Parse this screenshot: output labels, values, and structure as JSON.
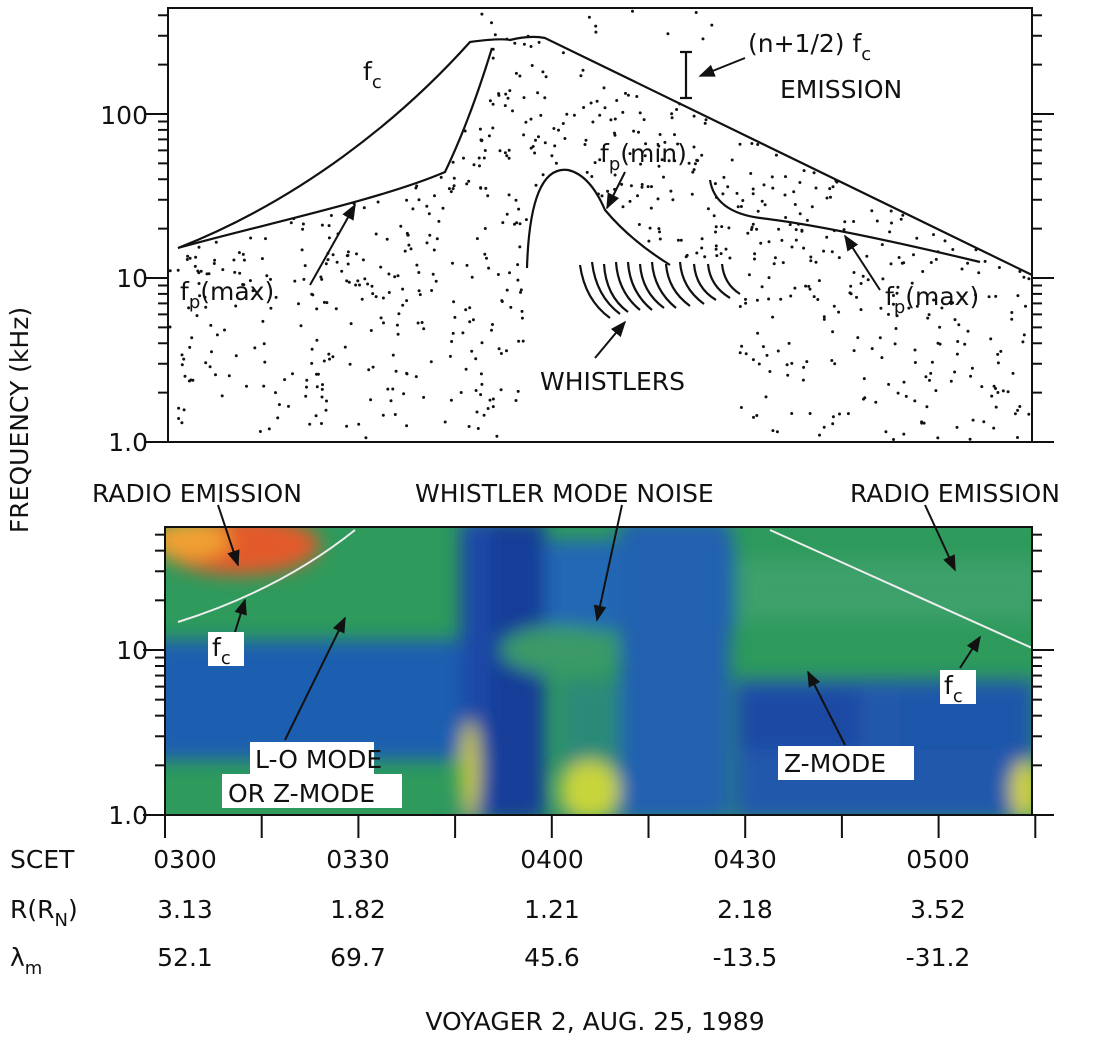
{
  "y_axis_label": "FREQUENCY (kHz)",
  "top_panel": {
    "y_ticks": [
      "100",
      "10",
      "1.0"
    ],
    "labels": {
      "fc": {
        "main": "f",
        "sub": "c"
      },
      "emission": {
        "main": "(n+1/2) f",
        "sub": "c",
        "line2": "EMISSION"
      },
      "fp_min": {
        "main": "f",
        "sub": "p",
        "rest": "(min)"
      },
      "fp_max_left": {
        "main": "f",
        "sub": "p",
        "rest": "(max)"
      },
      "fp_max_right": {
        "main": "f",
        "sub": "p",
        "rest": "(max)"
      },
      "whistlers": "WHISTLERS"
    }
  },
  "bottom_panel": {
    "y_ticks": [
      "10",
      "1.0"
    ],
    "labels": {
      "radio_emission_left": "RADIO EMISSION",
      "whistler_mode_noise": "WHISTLER MODE NOISE",
      "radio_emission_right": "RADIO EMISSION",
      "fc_left": {
        "main": "f",
        "sub": "c"
      },
      "lo_mode": [
        "L-O MODE",
        "OR Z-MODE"
      ],
      "z_mode": "Z-MODE",
      "fc_right": {
        "main": "f",
        "sub": "c"
      }
    }
  },
  "time_table": {
    "rows": [
      {
        "label": {
          "main": "SCET"
        },
        "values": [
          "0300",
          "0330",
          "0400",
          "0430",
          "0500"
        ]
      },
      {
        "label": {
          "main": "R(R",
          "sub": "N",
          "rest": ")"
        },
        "values": [
          "3.13",
          "1.82",
          "1.21",
          "2.18",
          "3.52"
        ]
      },
      {
        "label": {
          "main": "λ",
          "sub": "m"
        },
        "values": [
          "52.1",
          "69.7",
          "45.6",
          "-13.5",
          "-31.2"
        ]
      }
    ]
  },
  "caption": "VOYAGER 2, AUG. 25, 1989"
}
